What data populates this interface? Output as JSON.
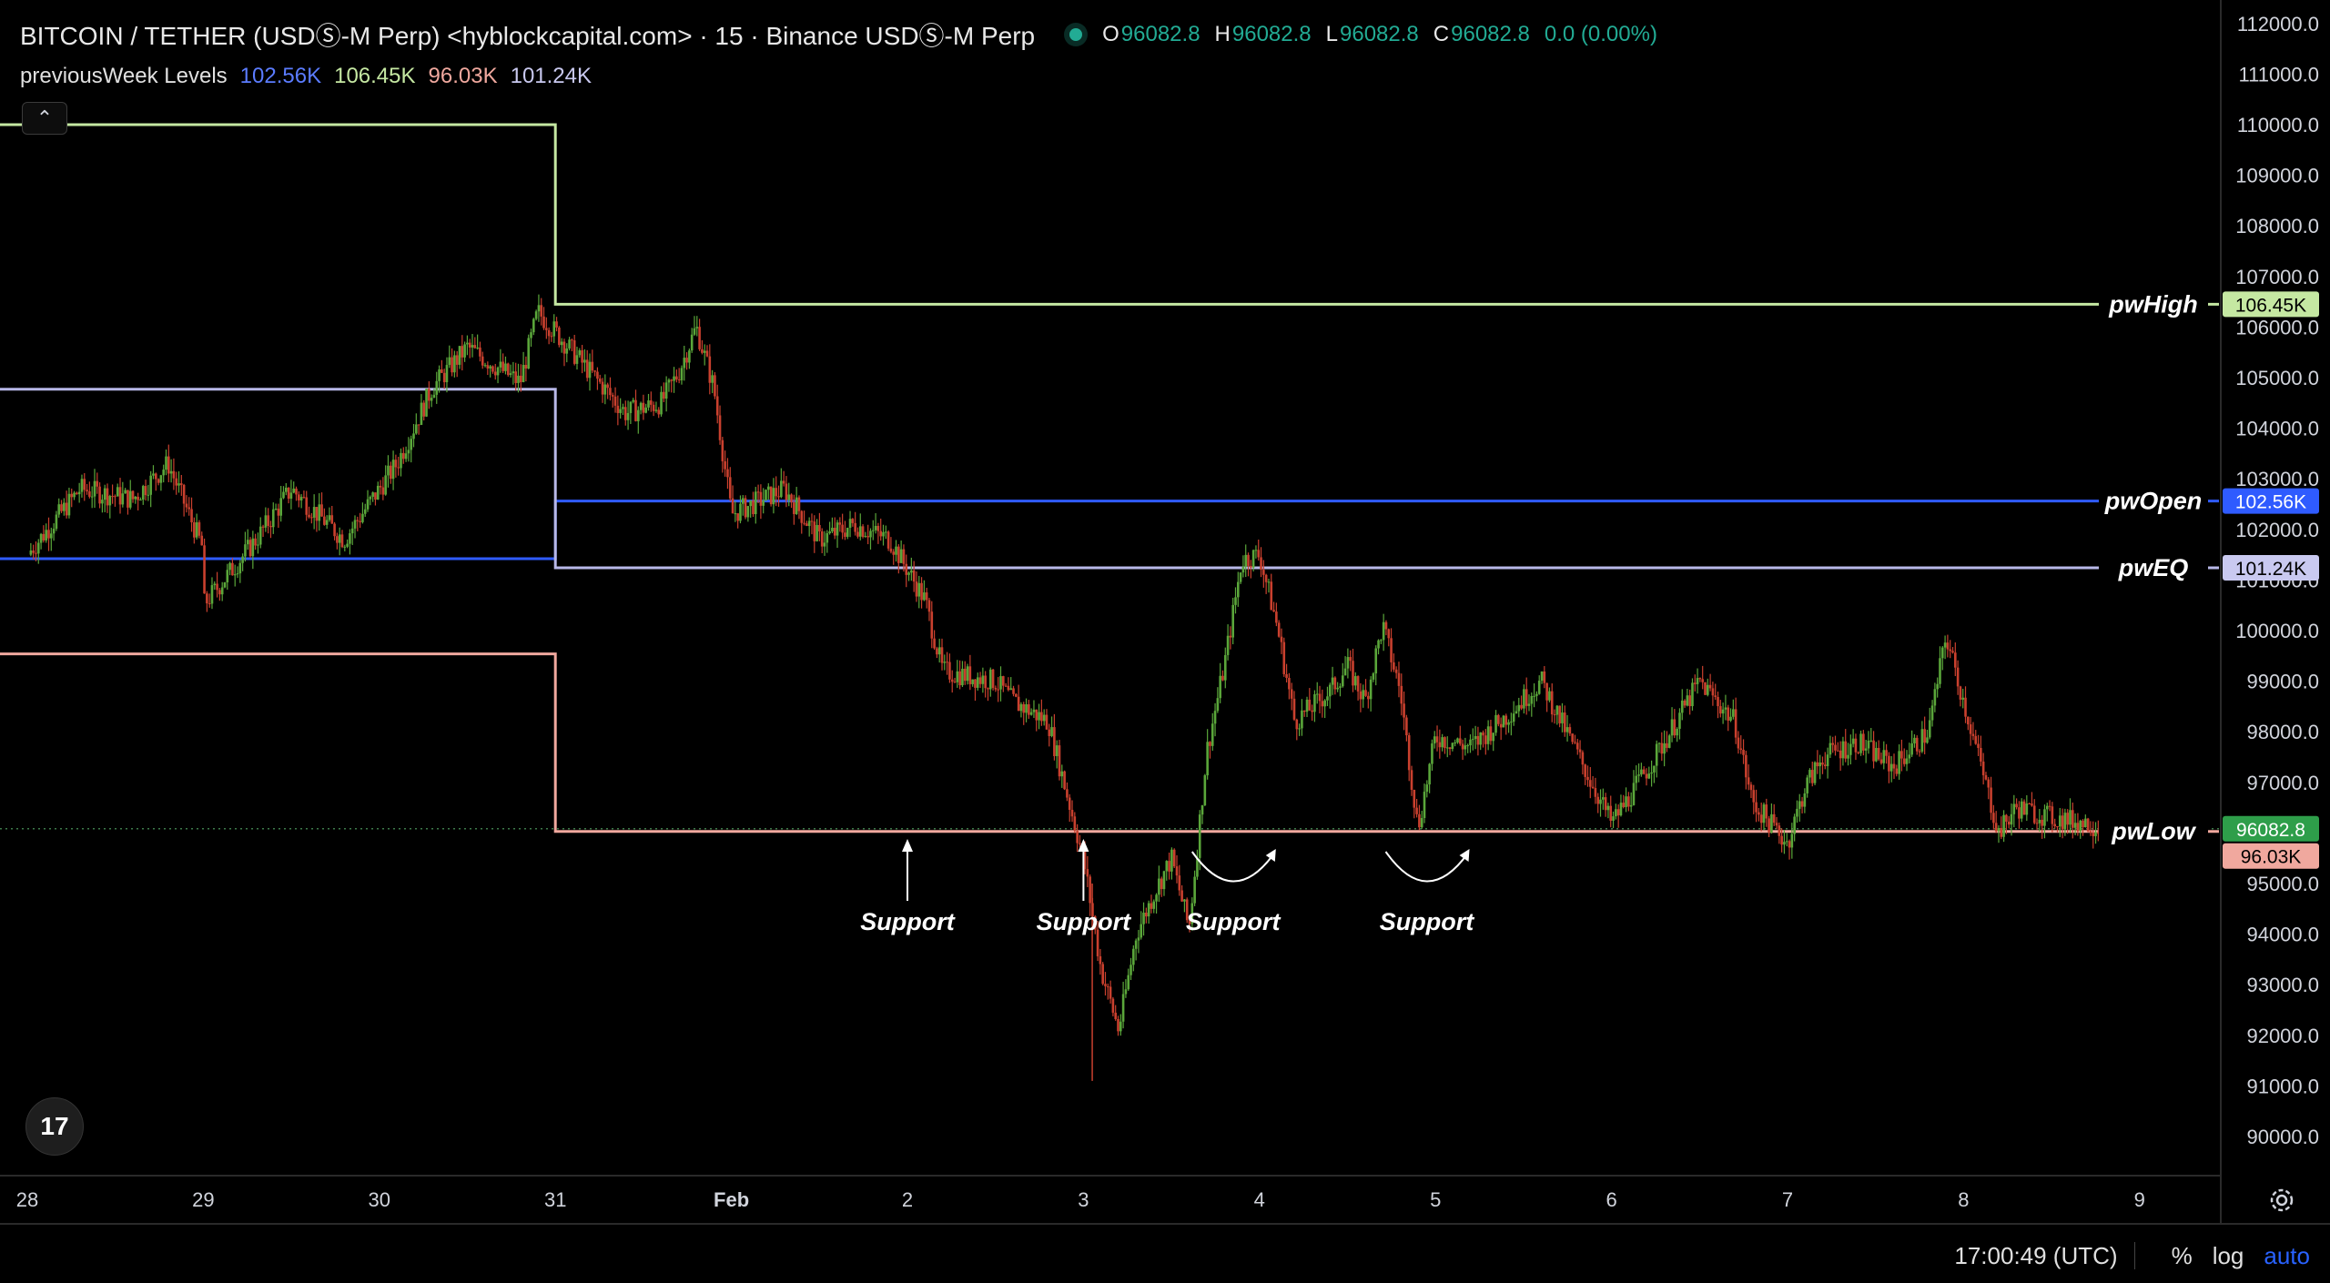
{
  "header": {
    "symbol_title": "BITCOIN / TETHER (USDⓈ-M Perp) <hyblockcapital.com> · 15 · Binance USDⓈ-M Perp",
    "ohlc": [
      {
        "label": "O",
        "value": "96082.8"
      },
      {
        "label": "H",
        "value": "96082.8"
      },
      {
        "label": "L",
        "value": "96082.8"
      },
      {
        "label": "C",
        "value": "96082.8"
      }
    ],
    "change": "0.0 (0.00%)"
  },
  "indicator": {
    "name": "previousWeek Levels",
    "values": [
      {
        "text": "102.56K",
        "color": "#5b7cff"
      },
      {
        "text": "106.45K",
        "color": "#c5e8a2"
      },
      {
        "text": "96.03K",
        "color": "#f0a89e"
      },
      {
        "text": "101.24K",
        "color": "#c9c9f0"
      }
    ]
  },
  "collapse_button": {
    "icon": "chevron-up-icon",
    "glyph": "⌃"
  },
  "logo": {
    "icon": "tradingview-logo-icon",
    "text": "17"
  },
  "status_bar": {
    "time": "17:00:49 (UTC)",
    "options": [
      "%",
      "log",
      "auto"
    ]
  },
  "chart_data": {
    "type": "candlestick",
    "ylim": [
      89500,
      112300
    ],
    "y_ticks": [
      "112000.0",
      "111000.0",
      "110000.0",
      "109000.0",
      "108000.0",
      "107000.0",
      "106000.0",
      "105000.0",
      "104000.0",
      "103000.0",
      "102000.0",
      "101000.0",
      "100000.0",
      "99000.0",
      "98000.0",
      "97000.0",
      "96000.0",
      "95000.0",
      "94000.0",
      "93000.0",
      "92000.0",
      "91000.0",
      "90000.0"
    ],
    "x_ticks": [
      "28",
      "29",
      "30",
      "31",
      "Feb",
      "2",
      "3",
      "4",
      "5",
      "6",
      "7",
      "8",
      "9"
    ],
    "close_path": [
      [
        0.0,
        101500
      ],
      [
        0.3,
        102800
      ],
      [
        0.6,
        102600
      ],
      [
        0.8,
        103300
      ],
      [
        1.0,
        101600
      ],
      [
        1.0,
        100500
      ],
      [
        1.3,
        101800
      ],
      [
        1.5,
        102800
      ],
      [
        1.8,
        101800
      ],
      [
        2.1,
        103300
      ],
      [
        2.3,
        104800
      ],
      [
        2.5,
        105600
      ],
      [
        2.8,
        104900
      ],
      [
        2.9,
        106300
      ],
      [
        3.1,
        105500
      ],
      [
        3.4,
        104300
      ],
      [
        3.6,
        104500
      ],
      [
        3.7,
        105100
      ],
      [
        3.8,
        106000
      ],
      [
        3.9,
        104800
      ],
      [
        4.0,
        102300
      ],
      [
        4.3,
        102800
      ],
      [
        4.5,
        101800
      ],
      [
        4.7,
        102100
      ],
      [
        4.9,
        101800
      ],
      [
        5.1,
        100600
      ],
      [
        5.2,
        99200
      ],
      [
        5.5,
        99000
      ],
      [
        5.6,
        98600
      ],
      [
        5.8,
        98200
      ],
      [
        6.0,
        95500
      ],
      [
        6.1,
        93300
      ],
      [
        6.2,
        92100
      ],
      [
        6.3,
        94000
      ],
      [
        6.4,
        94800
      ],
      [
        6.5,
        95500
      ],
      [
        6.6,
        94100
      ],
      [
        6.7,
        97600
      ],
      [
        6.8,
        99300
      ],
      [
        6.9,
        101400
      ],
      [
        7.0,
        101500
      ],
      [
        7.1,
        100100
      ],
      [
        7.2,
        98200
      ],
      [
        7.4,
        98800
      ],
      [
        7.5,
        99300
      ],
      [
        7.6,
        98600
      ],
      [
        7.7,
        100100
      ],
      [
        7.8,
        98800
      ],
      [
        7.9,
        96100
      ],
      [
        8.0,
        97900
      ],
      [
        8.2,
        97700
      ],
      [
        8.4,
        98300
      ],
      [
        8.6,
        99000
      ],
      [
        8.8,
        97600
      ],
      [
        9.0,
        96200
      ],
      [
        9.1,
        96700
      ],
      [
        9.3,
        97800
      ],
      [
        9.5,
        99000
      ],
      [
        9.7,
        98200
      ],
      [
        9.8,
        96600
      ],
      [
        10.0,
        95800
      ],
      [
        10.1,
        96900
      ],
      [
        10.2,
        97500
      ],
      [
        10.4,
        97800
      ],
      [
        10.6,
        97300
      ],
      [
        10.8,
        98000
      ],
      [
        10.9,
        99900
      ],
      [
        11.0,
        98600
      ],
      [
        11.1,
        97300
      ],
      [
        11.2,
        96000
      ],
      [
        11.3,
        96500
      ],
      [
        11.5,
        96300
      ],
      [
        11.7,
        96200
      ],
      [
        11.8,
        96082.8
      ]
    ],
    "levels": [
      {
        "name": "pwHigh",
        "color": "#c5e8a2",
        "tag_bg": "#c5e8a2",
        "tag_fg": "#000000",
        "tag_text": "106.45K",
        "segments": [
          [
            -0.2,
            110000,
            3.0
          ],
          [
            3.0,
            106450,
            12.75
          ]
        ]
      },
      {
        "name": "pwOpen",
        "color": "#2f5bff",
        "tag_bg": "#2f5bff",
        "tag_fg": "#ffffff",
        "tag_text": "102.56K",
        "segments": [
          [
            -0.2,
            101420,
            3.0
          ],
          [
            3.0,
            102560,
            12.75
          ]
        ]
      },
      {
        "name": "pwEQ",
        "color": "#b8b8e8",
        "tag_bg": "#c9c9f0",
        "tag_fg": "#000000",
        "tag_text": "101.24K",
        "segments": [
          [
            -0.2,
            104770,
            3.0
          ],
          [
            3.0,
            101240,
            12.75
          ]
        ]
      },
      {
        "name": "pwLow",
        "color": "#f0a89e",
        "tag_bg": "#f0a89e",
        "tag_fg": "#000000",
        "tag_text": "96.03K",
        "segments": [
          [
            -0.2,
            99540,
            3.0
          ],
          [
            3.0,
            96030,
            12.75
          ]
        ]
      }
    ],
    "last_price": {
      "value": 96082.8,
      "text": "96082.8",
      "color": "#2e9e4a"
    },
    "annotations": [
      {
        "text": "Support",
        "x": 5.0,
        "kind": "arrow"
      },
      {
        "text": "Support",
        "x": 6.0,
        "kind": "arrow"
      },
      {
        "text": "Support",
        "x": 6.85,
        "kind": "curve"
      },
      {
        "text": "Support",
        "x": 7.95,
        "kind": "curve"
      }
    ]
  }
}
